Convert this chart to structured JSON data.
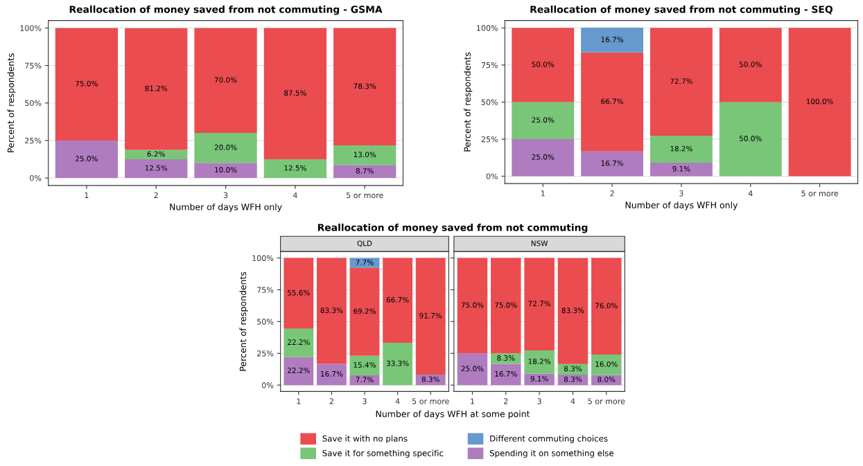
{
  "chart_data": [
    {
      "type": "bar",
      "stacked": true,
      "title": "Reallocation of money saved from not commuting - GSMA",
      "xlabel": "Number of days WFH only",
      "ylabel": "Percent of respondents",
      "categories": [
        "1",
        "2",
        "3",
        "4",
        "5 or more"
      ],
      "ylim": [
        -5,
        105
      ],
      "yticks": [
        {
          "value": 0,
          "label": "0%"
        },
        {
          "value": 25,
          "label": "25%"
        },
        {
          "value": 50,
          "label": "50%"
        },
        {
          "value": 75,
          "label": "75%"
        },
        {
          "value": 100,
          "label": "100%"
        }
      ],
      "grid": "y",
      "legend": "bottom",
      "series": [
        {
          "name": "Spending it on something else",
          "color": "#b07cc0",
          "values": [
            25.0,
            12.5,
            10.0,
            null,
            8.7
          ],
          "value_labels": [
            "25.0%",
            "12.5%",
            "10.0%",
            null,
            "8.7%"
          ]
        },
        {
          "name": "Save it for something specific",
          "color": "#79c679",
          "values": [
            null,
            6.2,
            20.0,
            12.5,
            13.0
          ],
          "value_labels": [
            null,
            "6.2%",
            "20.0%",
            "12.5%",
            "13.0%"
          ]
        },
        {
          "name": "Save it with no plans",
          "color": "#ea4c50",
          "values": [
            75.0,
            81.2,
            70.0,
            87.5,
            78.3
          ],
          "value_labels": [
            "75.0%",
            "81.2%",
            "70.0%",
            "87.5%",
            "78.3%"
          ]
        }
      ]
    },
    {
      "type": "bar",
      "stacked": true,
      "title": "Reallocation of money saved from not commuting - SEQ",
      "xlabel": "Number of days WFH only",
      "ylabel": "Percent of respondents",
      "categories": [
        "1",
        "2",
        "3",
        "4",
        "5 or more"
      ],
      "ylim": [
        -5,
        105
      ],
      "yticks": [
        {
          "value": 0,
          "label": "0%"
        },
        {
          "value": 25,
          "label": "25%"
        },
        {
          "value": 50,
          "label": "50%"
        },
        {
          "value": 75,
          "label": "75%"
        },
        {
          "value": 100,
          "label": "100%"
        }
      ],
      "grid": "y",
      "legend": "bottom",
      "series": [
        {
          "name": "Spending it on something else",
          "color": "#b07cc0",
          "values": [
            25.0,
            16.7,
            9.1,
            null,
            null
          ],
          "value_labels": [
            "25.0%",
            "16.7%",
            "9.1%",
            null,
            null
          ]
        },
        {
          "name": "Save it for something specific",
          "color": "#79c679",
          "values": [
            25.0,
            null,
            18.2,
            50.0,
            null
          ],
          "value_labels": [
            "25.0%",
            null,
            "18.2%",
            "50.0%",
            null
          ]
        },
        {
          "name": "Save it with no plans",
          "color": "#ea4c50",
          "values": [
            50.0,
            66.7,
            72.7,
            50.0,
            100.0
          ],
          "value_labels": [
            "50.0%",
            "66.7%",
            "72.7%",
            "50.0%",
            "100.0%"
          ]
        },
        {
          "name": "Different commuting choices",
          "color": "#6699cc",
          "values": [
            null,
            16.7,
            null,
            null,
            null
          ],
          "value_labels": [
            null,
            "16.7%",
            null,
            null,
            null
          ]
        }
      ]
    },
    {
      "type": "bar",
      "stacked": true,
      "title": "Reallocation of money saved from not commuting",
      "subtitle": "QLD",
      "xlabel": "Number of days WFH at some point",
      "ylabel": "Percent of respondents",
      "categories": [
        "1",
        "2",
        "3",
        "4",
        "5 or more"
      ],
      "ylim": [
        -5,
        105
      ],
      "yticks": [
        {
          "value": 0,
          "label": "0%"
        },
        {
          "value": 25,
          "label": "25%"
        },
        {
          "value": 50,
          "label": "50%"
        },
        {
          "value": 75,
          "label": "75%"
        },
        {
          "value": 100,
          "label": "100%"
        }
      ],
      "grid": "y",
      "legend": "bottom",
      "series": [
        {
          "name": "Spending it on something else",
          "color": "#b07cc0",
          "values": [
            22.2,
            16.7,
            7.7,
            null,
            8.3
          ],
          "value_labels": [
            "22.2%",
            "16.7%",
            "7.7%",
            null,
            "8.3%"
          ]
        },
        {
          "name": "Save it for something specific",
          "color": "#79c679",
          "values": [
            22.2,
            null,
            15.4,
            33.3,
            null
          ],
          "value_labels": [
            "22.2%",
            null,
            "15.4%",
            "33.3%",
            null
          ]
        },
        {
          "name": "Save it with no plans",
          "color": "#ea4c50",
          "values": [
            55.6,
            83.3,
            69.2,
            66.7,
            91.7
          ],
          "value_labels": [
            "55.6%",
            "83.3%",
            "69.2%",
            "66.7%",
            "91.7%"
          ]
        },
        {
          "name": "Different commuting choices",
          "color": "#6699cc",
          "values": [
            null,
            null,
            7.7,
            null,
            null
          ],
          "value_labels": [
            null,
            null,
            "7.7%",
            null,
            null
          ]
        }
      ]
    },
    {
      "type": "bar",
      "stacked": true,
      "subtitle": "NSW",
      "tick_labels": "x",
      "categories": [
        "1",
        "2",
        "3",
        "4",
        "5 or more"
      ],
      "ylim": [
        -5,
        105
      ],
      "yticks": [
        {
          "value": 0,
          "label": null
        },
        {
          "value": 25,
          "label": null
        },
        {
          "value": 50,
          "label": null
        },
        {
          "value": 75,
          "label": null
        },
        {
          "value": 100,
          "label": null
        }
      ],
      "grid": "y",
      "legend": "bottom",
      "series": [
        {
          "name": "Spending it on something else",
          "color": "#b07cc0",
          "values": [
            25.0,
            16.7,
            9.1,
            8.3,
            8.0
          ],
          "value_labels": [
            "25.0%",
            "16.7%",
            "9.1%",
            "8.3%",
            "8.0%"
          ]
        },
        {
          "name": "Save it for something specific",
          "color": "#79c679",
          "values": [
            null,
            8.3,
            18.2,
            8.3,
            16.0
          ],
          "value_labels": [
            null,
            "8.3%",
            "18.2%",
            "8.3%",
            "16.0%"
          ]
        },
        {
          "name": "Save it with no plans",
          "color": "#ea4c50",
          "values": [
            75.0,
            75.0,
            72.7,
            83.3,
            76.0
          ],
          "value_labels": [
            "75.0%",
            "75.0%",
            "72.7%",
            "83.3%",
            "76.0%"
          ]
        },
        {
          "name": "Different commuting choices",
          "color": "#6699cc",
          "values": [
            null,
            null,
            null,
            null,
            null
          ],
          "value_labels": [
            null,
            null,
            null,
            null,
            null
          ]
        }
      ]
    }
  ]
}
